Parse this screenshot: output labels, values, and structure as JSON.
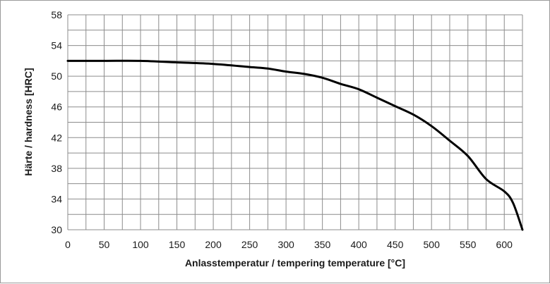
{
  "chart_data": {
    "type": "line",
    "title": "",
    "xlabel": "Anlasstemperatur / tempering temperature [°C]",
    "ylabel": "Härte / hardness [HRC]",
    "xlim": [
      0,
      625
    ],
    "ylim": [
      30,
      58
    ],
    "x_ticks": [
      "0",
      "50",
      "100",
      "150",
      "200",
      "250",
      "300",
      "350",
      "400",
      "450",
      "500",
      "550",
      "600"
    ],
    "y_ticks": [
      "30",
      "34",
      "38",
      "42",
      "46",
      "50",
      "54",
      "58"
    ],
    "grid": true,
    "legend": "none",
    "line_color": "#000000",
    "series": [
      {
        "x": [
          0,
          50,
          100,
          150,
          200,
          250,
          275,
          300,
          325,
          350,
          375,
          400,
          425,
          450,
          475,
          500,
          525,
          550,
          575,
          600,
          612,
          625
        ],
        "y": [
          52,
          52,
          52,
          51.8,
          51.6,
          51.2,
          51.0,
          50.6,
          50.3,
          49.8,
          49.0,
          48.3,
          47.2,
          46.1,
          45.0,
          43.5,
          41.6,
          39.6,
          36.6,
          35.0,
          33.5,
          30.0
        ]
      }
    ]
  }
}
